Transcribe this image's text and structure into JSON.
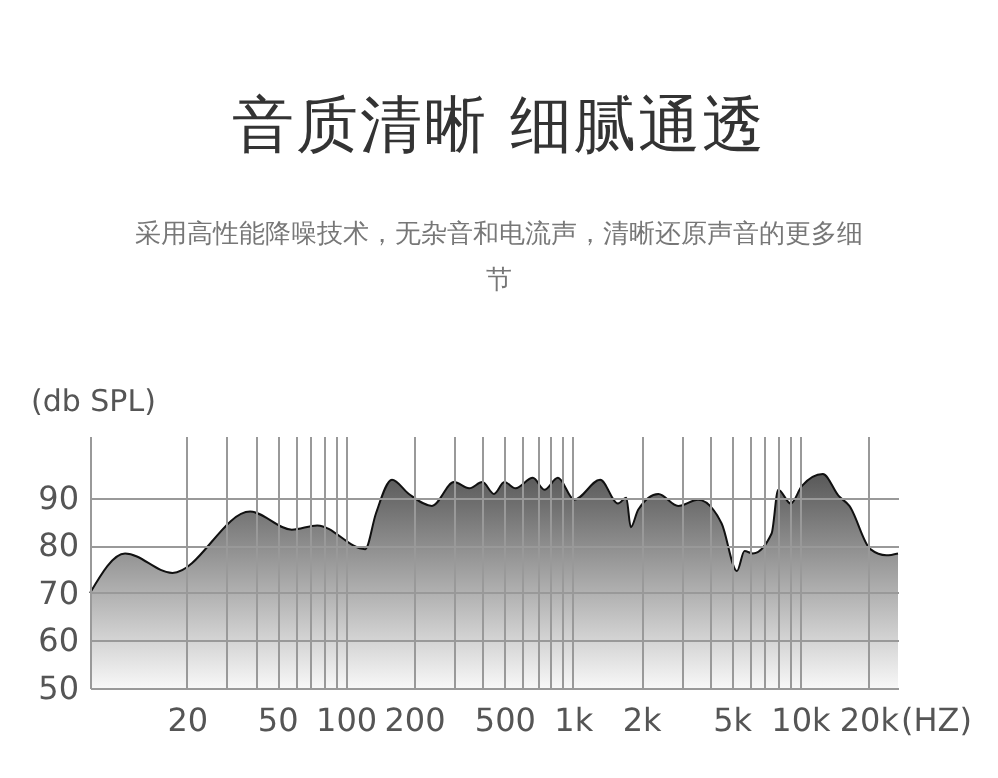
{
  "chart_data": {
    "type": "area",
    "title": "音质清晰 细腻通透",
    "subtitle": "采用高性能降噪技术，无杂音和电流声，清晰还原声音的更多细节",
    "xlabel": "(HZ)",
    "ylabel": "(db SPL)",
    "x": [
      7.5,
      10.7,
      17.3,
      38,
      58,
      75,
      122,
      136,
      160,
      190,
      240,
      300,
      350,
      400,
      450,
      500,
      560,
      667,
      750,
      860,
      1015,
      1320,
      1580,
      1720,
      1800,
      1940,
      2380,
      2910,
      3560,
      4520,
      5280,
      5700,
      6200,
      7500,
      8020,
      9100,
      10200,
      12600,
      14800,
      16500,
      20400,
      24000,
      27000
    ],
    "series": [
      {
        "color": "#111111",
        "values": [
          70,
          78.3,
          74.2,
          87.1,
          83.3,
          84.2,
          79.2,
          86.7,
          93.8,
          90.8,
          88.3,
          93.3,
          92,
          93.3,
          90.8,
          93.3,
          92,
          94.2,
          91.7,
          94.2,
          89.6,
          93.8,
          88.8,
          90,
          83.8,
          87.5,
          90.8,
          88.3,
          89.6,
          84.6,
          74.6,
          78.8,
          78.3,
          82.5,
          91.7,
          88.8,
          92.5,
          95,
          90.4,
          88.3,
          79.2,
          77.9,
          78.3
        ]
      }
    ],
    "xlim": [
      7.5,
      27000
    ],
    "ylim": [
      50,
      103
    ],
    "log": "x",
    "grid": true,
    "xticks": [
      {
        "value": 20,
        "label": "20"
      },
      {
        "value": 30,
        "label": null
      },
      {
        "value": 40,
        "label": null
      },
      {
        "value": 50,
        "label": "50"
      },
      {
        "value": 60,
        "label": null
      },
      {
        "value": 70,
        "label": null
      },
      {
        "value": 80,
        "label": null
      },
      {
        "value": 90,
        "label": null
      },
      {
        "value": 100,
        "label": "100"
      },
      {
        "value": 200,
        "label": "200"
      },
      {
        "value": 300,
        "label": null
      },
      {
        "value": 400,
        "label": null
      },
      {
        "value": 500,
        "label": "500"
      },
      {
        "value": 600,
        "label": null
      },
      {
        "value": 700,
        "label": null
      },
      {
        "value": 800,
        "label": null
      },
      {
        "value": 900,
        "label": null
      },
      {
        "value": 1000,
        "label": "1k"
      },
      {
        "value": 2000,
        "label": "2k"
      },
      {
        "value": 3000,
        "label": null
      },
      {
        "value": 4000,
        "label": null
      },
      {
        "value": 5000,
        "label": "5k"
      },
      {
        "value": 6000,
        "label": null
      },
      {
        "value": 7000,
        "label": null
      },
      {
        "value": 8000,
        "label": null
      },
      {
        "value": 9000,
        "label": null
      },
      {
        "value": 10000,
        "label": "10k"
      },
      {
        "value": 20000,
        "label": "20k"
      }
    ],
    "yticks": [
      50,
      60,
      70,
      80,
      90
    ]
  }
}
